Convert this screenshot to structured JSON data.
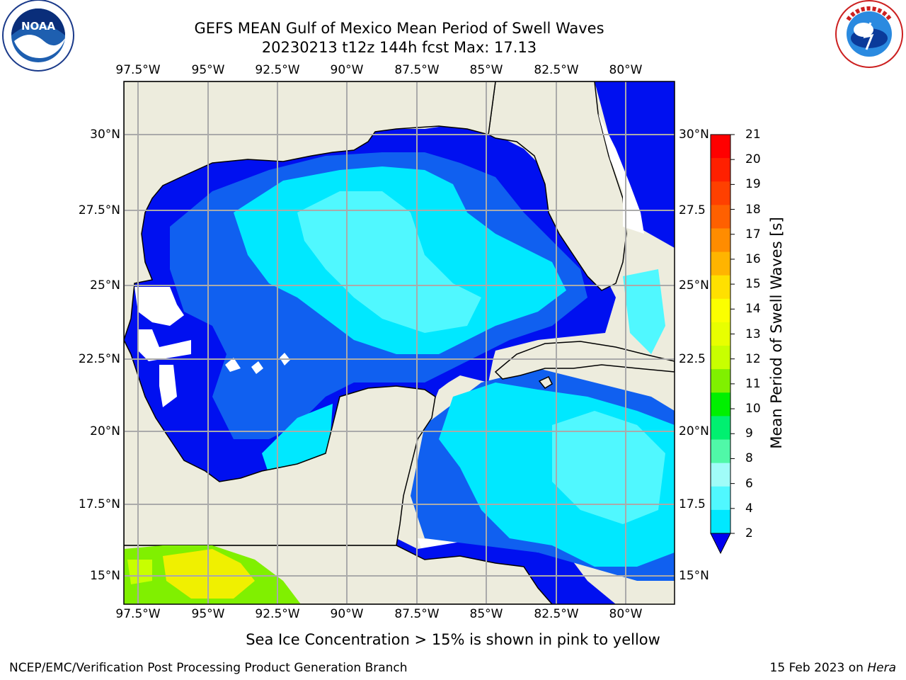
{
  "title": {
    "line1": "GEFS MEAN Gulf of Mexico Mean Period of Swell Waves",
    "line2": "20230213 t12z 144h fcst   Max: 17.13"
  },
  "logos": {
    "left": {
      "name": "noaa-logo",
      "text": "NOAA"
    },
    "right": {
      "name": "nws-logo",
      "text": "NATIONAL WEATHER SERVICE"
    }
  },
  "map": {
    "lon_ticks": [
      "97.5°W",
      "95°W",
      "92.5°W",
      "90°W",
      "87.5°W",
      "85°W",
      "82.5°W",
      "80°W"
    ],
    "lat_ticks_left": [
      "30°N",
      "27.5°N",
      "25°N",
      "22.5°N",
      "20°N",
      "17.5°N",
      "15°N"
    ],
    "lat_ticks_right": [
      "30°N",
      "27.5",
      "25°N",
      "22.5",
      "20°N",
      "17.5",
      "15°N"
    ],
    "colors": {
      "land": "#edecdd",
      "no_data": "#ffffff",
      "blue": "#0010f0",
      "mid_blue": "#1060f0",
      "light_blue": "#2090f8",
      "cyan": "#00e8ff",
      "light_cyan": "#50f8ff",
      "ice_yellow": "#f0f000",
      "ice_green": "#80f000"
    }
  },
  "colorbar": {
    "title": "Mean Period of Swell Waves [s]",
    "labels": [
      "21",
      "20",
      "19",
      "18",
      "17",
      "16",
      "15",
      "14",
      "13",
      "12",
      "11",
      "10",
      "9",
      "8",
      "6",
      "4",
      "2"
    ],
    "colors": [
      "#ff0000",
      "#ff2000",
      "#ff4000",
      "#ff6000",
      "#ff8c00",
      "#ffb400",
      "#ffe000",
      "#fbff00",
      "#e8ff00",
      "#c8ff00",
      "#80f000",
      "#00f000",
      "#00f070",
      "#50f8a8",
      "#a0fcf8",
      "#50f8ff",
      "#00e8ff",
      "#1060f0"
    ],
    "extend_color": "#0000f0"
  },
  "footer": {
    "ice_note": "Sea Ice Concentration > 15% is shown in pink to yellow",
    "left": "NCEP/EMC/Verification Post Processing Product Generation Branch",
    "right_date": "15 Feb 2023 on ",
    "right_host": "Hera"
  }
}
